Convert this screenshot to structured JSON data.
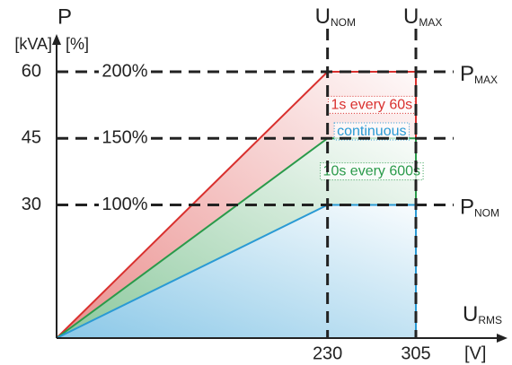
{
  "chart_data": {
    "type": "line",
    "x": [
      0,
      230,
      305
    ],
    "xlim": [
      0,
      305
    ],
    "xticks": [
      230,
      305
    ],
    "ylim": [
      0,
      60
    ],
    "yticks": [
      30,
      45,
      60
    ],
    "y2lim": [
      0,
      200
    ],
    "y2ticks": [
      {
        "value": 100,
        "label": "100%"
      },
      {
        "value": 150,
        "label": "150%"
      },
      {
        "value": 200,
        "label": "200%"
      }
    ],
    "series": [
      {
        "name": "1s every 60s",
        "color": "#d9302e",
        "values": [
          0,
          60,
          60
        ]
      },
      {
        "name": "10s every 600s",
        "color": "#2a9a4a",
        "values": [
          0,
          45,
          45
        ]
      },
      {
        "name": "continuous",
        "color": "#2a9ad4",
        "values": [
          0,
          30,
          30
        ]
      }
    ],
    "y_label": "P",
    "y_unit": "[kVA]",
    "y2_unit": "[%]",
    "x_label": {
      "main": "U",
      "sub": "RMS"
    },
    "x_unit": "[V]",
    "annotations": [
      {
        "main": "U",
        "sub": "NOM"
      },
      {
        "main": "U",
        "sub": "MAX"
      },
      {
        "main": "P",
        "sub": "MAX"
      },
      {
        "main": "P",
        "sub": "NOM"
      }
    ]
  }
}
